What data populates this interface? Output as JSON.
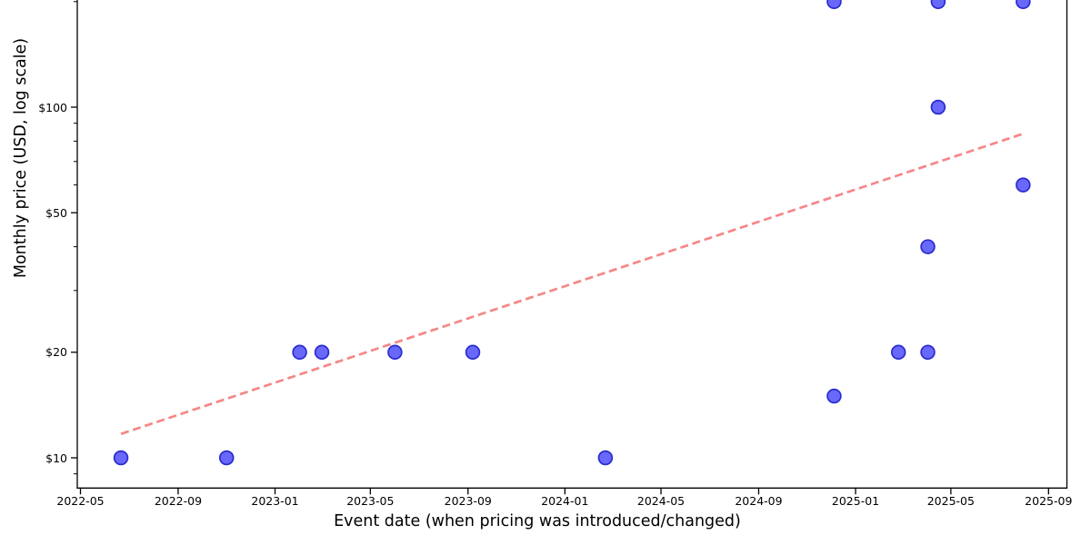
{
  "chart_data": {
    "type": "scatter",
    "xlabel": "Event date (when pricing was introduced/changed)",
    "ylabel": "Monthly price (USD, log scale)",
    "x_axis": {
      "scale": "time",
      "tick_labels": [
        "2022-05",
        "2022-09",
        "2023-01",
        "2023-05",
        "2023-09",
        "2024-01",
        "2024-05",
        "2024-09",
        "2025-01",
        "2025-05",
        "2025-09"
      ],
      "range": [
        "2022-05-01",
        "2025-09-01"
      ]
    },
    "y_axis": {
      "scale": "log",
      "tick_labels": [
        "$10",
        "$20",
        "$50",
        "$100"
      ],
      "tick_values": [
        10,
        20,
        50,
        100
      ],
      "minor_tick_values": [
        9,
        30,
        40,
        60,
        70,
        80,
        90,
        200
      ],
      "visible_top_value": 200,
      "grid": false
    },
    "points": [
      {
        "date": "2022-06-21",
        "price": 10
      },
      {
        "date": "2022-11-01",
        "price": 10
      },
      {
        "date": "2023-02-01",
        "price": 20
      },
      {
        "date": "2023-03-01",
        "price": 20
      },
      {
        "date": "2023-06-01",
        "price": 20
      },
      {
        "date": "2023-09-07",
        "price": 20
      },
      {
        "date": "2024-02-21",
        "price": 10
      },
      {
        "date": "2024-12-05",
        "price": 15
      },
      {
        "date": "2024-12-05",
        "price": 200
      },
      {
        "date": "2025-02-24",
        "price": 20
      },
      {
        "date": "2025-04-02",
        "price": 20
      },
      {
        "date": "2025-04-02",
        "price": 40
      },
      {
        "date": "2025-04-15",
        "price": 100
      },
      {
        "date": "2025-04-15",
        "price": 200
      },
      {
        "date": "2025-07-31",
        "price": 60
      },
      {
        "date": "2025-07-31",
        "price": 200
      }
    ],
    "trendline": {
      "style": "dashed",
      "start_date": "2022-06-21",
      "start_price": 11.7,
      "end_date": "2025-07-31",
      "end_price": 84
    },
    "legend": null,
    "title": "",
    "colors": {
      "marker_fill": "#4d4dfa",
      "marker_edge": "#2b2bd0",
      "trend": "#f25f5f",
      "axis": "#000000"
    }
  }
}
